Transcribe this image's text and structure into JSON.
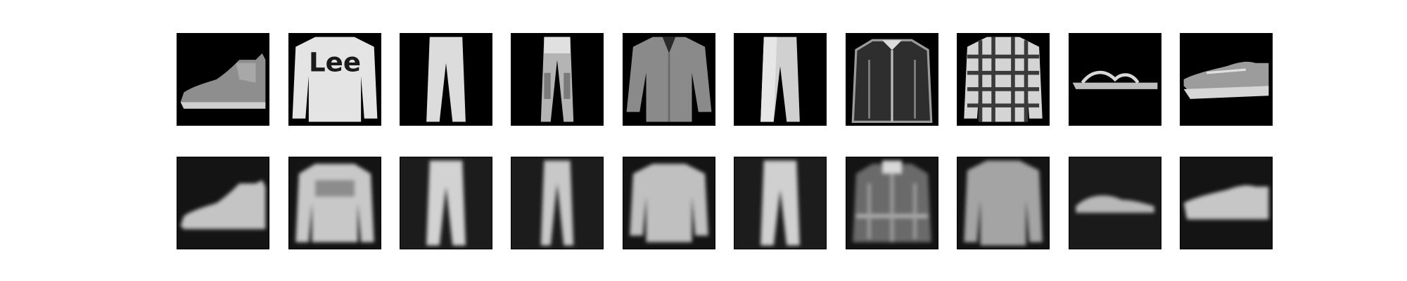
{
  "figure": {
    "rows": [
      {
        "role": "original",
        "items": [
          {
            "subject": "ankle-boot-icon"
          },
          {
            "subject": "pullover-icon",
            "print": "Lee"
          },
          {
            "subject": "trouser-icon"
          },
          {
            "subject": "trouser-icon"
          },
          {
            "subject": "shirt-icon"
          },
          {
            "subject": "trouser-icon"
          },
          {
            "subject": "coat-icon"
          },
          {
            "subject": "checked-shirt-icon"
          },
          {
            "subject": "sandal-icon"
          },
          {
            "subject": "sneaker-icon"
          }
        ]
      },
      {
        "role": "reconstruction",
        "items": [
          {
            "subject": "ankle-boot-icon"
          },
          {
            "subject": "pullover-icon"
          },
          {
            "subject": "trouser-icon"
          },
          {
            "subject": "trouser-icon"
          },
          {
            "subject": "shirt-icon"
          },
          {
            "subject": "trouser-icon"
          },
          {
            "subject": "coat-icon"
          },
          {
            "subject": "shirt-icon"
          },
          {
            "subject": "sandal-icon"
          },
          {
            "subject": "sneaker-icon"
          }
        ]
      }
    ],
    "colors": {
      "background": "#ffffff",
      "tile": "#000000",
      "recon_tile": "#161616",
      "garment_light": "#e0e0e0",
      "garment_mid": "#9a9a9a"
    }
  }
}
